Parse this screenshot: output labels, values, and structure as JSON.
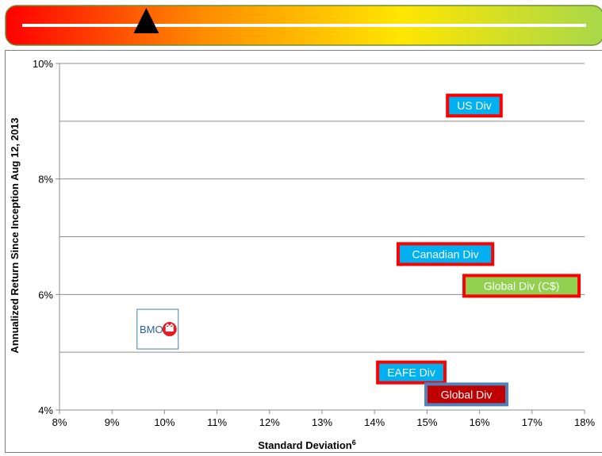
{
  "risk_meter": {
    "colors": [
      "#ff0000",
      "#ff8c00",
      "#ffe600",
      "#a8d84a"
    ],
    "indicator_level": 0.22
  },
  "chart_data": {
    "type": "scatter",
    "title": "",
    "xlabel": "Standard Deviation",
    "xlabel_superscript": "6",
    "ylabel": "Annualized Return Since Inception Aug 12, 2013",
    "xlim": [
      8,
      18
    ],
    "ylim": [
      4,
      10
    ],
    "x_ticks": [
      "8%",
      "9%",
      "10%",
      "11%",
      "12%",
      "13%",
      "14%",
      "15%",
      "16%",
      "17%",
      "18%"
    ],
    "y_ticks": [
      {
        "value": 4,
        "label": "4%"
      },
      {
        "value": 6,
        "label": "6%"
      },
      {
        "value": 8,
        "label": "8%"
      },
      {
        "value": 10,
        "label": "10%"
      }
    ],
    "y_gridlines": [
      5,
      6,
      7,
      8,
      9,
      10
    ],
    "grid": true,
    "points": [
      {
        "label": "US Div",
        "x": 15.9,
        "y": 9.27,
        "fill": "#00b0f0",
        "border": "#ff0000"
      },
      {
        "label": "Canadian Div",
        "x": 15.35,
        "y": 6.7,
        "fill": "#00b0f0",
        "border": "#ff0000"
      },
      {
        "label": "Global Div (C$)",
        "x": 16.8,
        "y": 6.15,
        "fill": "#92d050",
        "border": "#ff0000"
      },
      {
        "label": "EAFE Div",
        "x": 14.7,
        "y": 4.65,
        "fill": "#00b0f0",
        "border": "#ff0000"
      },
      {
        "label": "Global Div",
        "x": 15.75,
        "y": 4.27,
        "fill": "#c00000",
        "border": "#4f81bd"
      }
    ],
    "logo": {
      "text": "BMO",
      "x": 9.9,
      "y": 5.4
    }
  }
}
